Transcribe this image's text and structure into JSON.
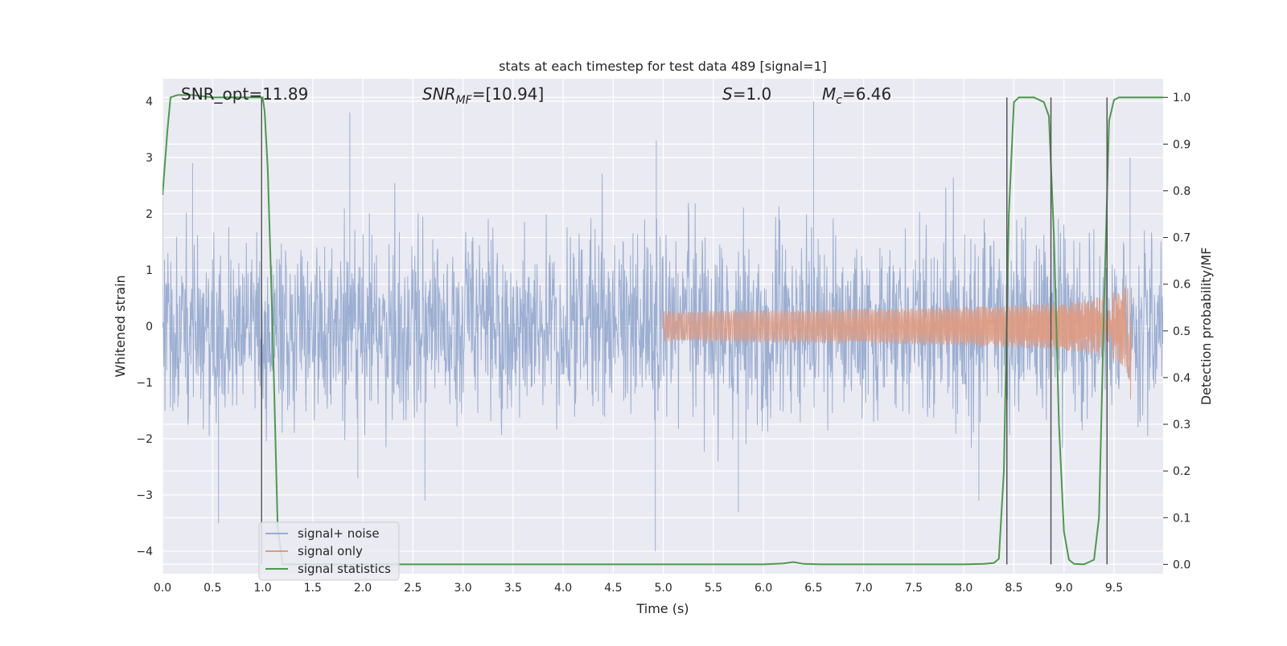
{
  "chart_data": {
    "type": "line",
    "title": "stats at each timestep for test data 489 [signal=1]",
    "xlabel": "Time (s)",
    "ylabel": "Whitened strain",
    "ylabel_right": "Detection probability/MF",
    "xlim": [
      0.0,
      9.99
    ],
    "ylim": [
      -4.4,
      4.4
    ],
    "ylim_right": [
      -0.02,
      1.04
    ],
    "x_ticks": [
      0.0,
      0.5,
      1.0,
      1.5,
      2.0,
      2.5,
      3.0,
      3.5,
      4.0,
      4.5,
      5.0,
      5.5,
      6.0,
      6.5,
      7.0,
      7.5,
      8.0,
      8.5,
      9.0,
      9.5
    ],
    "x_tick_labels": [
      "0.0",
      "0.5",
      "1.0",
      "1.5",
      "2.0",
      "2.5",
      "3.0",
      "3.5",
      "4.0",
      "4.5",
      "5.0",
      "5.5",
      "6.0",
      "6.5",
      "7.0",
      "7.5",
      "8.0",
      "8.5",
      "9.0",
      "9.5"
    ],
    "y_ticks": [
      -4,
      -3,
      -2,
      -1,
      0,
      1,
      2,
      3,
      4
    ],
    "y_tick_labels": [
      "−4",
      "−3",
      "−2",
      "−1",
      "0",
      "1",
      "2",
      "3",
      "4"
    ],
    "y_ticks_right": [
      0.0,
      0.1,
      0.2,
      0.3,
      0.4,
      0.5,
      0.6,
      0.7,
      0.8,
      0.9,
      1.0
    ],
    "y_tick_labels_right": [
      "0.0",
      "0.1",
      "0.2",
      "0.3",
      "0.4",
      "0.5",
      "0.6",
      "0.7",
      "0.8",
      "0.9",
      "1.0"
    ],
    "grid": true,
    "legend_placement": "lower-left",
    "annotations": {
      "snr_opt": "SNR_opt=11.89",
      "snr_mf_sym": "SNR",
      "snr_mf_sub": "MF",
      "snr_mf_val": "=[10.94]",
      "s_sym": "S",
      "s_val": "=1.0",
      "mc_sym": "M",
      "mc_sub": "c",
      "mc_val": "=6.46"
    },
    "series": [
      {
        "name": "signal+ noise",
        "axis": "left",
        "color": "#98acd0",
        "kind": "noise",
        "envelope_sd": 0.8,
        "peaks": [
          [
            0.0,
            2.3
          ],
          [
            0.3,
            2.9
          ],
          [
            0.56,
            -3.5
          ],
          [
            1.87,
            3.8
          ],
          [
            1.95,
            -2.7
          ],
          [
            2.62,
            -3.1
          ],
          [
            4.93,
            3.3
          ],
          [
            4.92,
            -4.0
          ],
          [
            5.75,
            -3.3
          ],
          [
            6.5,
            4.0
          ],
          [
            8.15,
            -3.1
          ],
          [
            9.66,
            3.0
          ]
        ]
      },
      {
        "name": "signal only",
        "axis": "left",
        "color": "#e09a80",
        "kind": "chirp",
        "start": 5.0,
        "merger": 9.66,
        "peak": 1.05,
        "peak_neg": -1.3
      },
      {
        "name": "signal statistics",
        "axis": "right",
        "color": "#4c9a4c",
        "x": [
          0.0,
          0.05,
          0.08,
          0.15,
          0.3,
          0.5,
          0.7,
          0.9,
          1.0,
          1.02,
          1.05,
          1.1,
          1.15,
          1.2,
          1.3,
          2.0,
          3.0,
          4.0,
          5.0,
          5.5,
          6.0,
          6.2,
          6.3,
          6.4,
          6.6,
          7.0,
          7.5,
          8.0,
          8.2,
          8.3,
          8.35,
          8.4,
          8.45,
          8.5,
          8.55,
          8.6,
          8.7,
          8.8,
          8.85,
          8.9,
          8.95,
          9.0,
          9.05,
          9.1,
          9.2,
          9.3,
          9.35,
          9.4,
          9.45,
          9.5,
          9.55,
          9.7,
          9.99
        ],
        "values": [
          0.79,
          0.93,
          1.0,
          1.005,
          1.005,
          1.0,
          1.0,
          1.0,
          1.0,
          0.97,
          0.85,
          0.5,
          0.08,
          0.0,
          0.0,
          0.0,
          0.0,
          0.0,
          0.0,
          0.0,
          0.0,
          0.002,
          0.005,
          0.001,
          0.0,
          0.0,
          0.0,
          0.0,
          0.001,
          0.003,
          0.012,
          0.2,
          0.75,
          0.99,
          1.0,
          1.0,
          1.0,
          0.99,
          0.96,
          0.7,
          0.3,
          0.07,
          0.01,
          0.001,
          0.0,
          0.01,
          0.1,
          0.55,
          0.95,
          0.995,
          1.0,
          1.0,
          1.0
        ]
      }
    ],
    "vertical_markers_x": [
      0.99,
      8.43,
      8.87,
      9.43
    ],
    "marker_color": "#555555"
  }
}
